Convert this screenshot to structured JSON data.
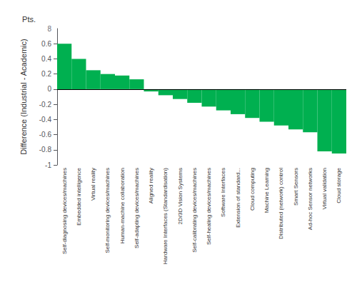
{
  "chart_data": {
    "type": "bar",
    "categories": [
      "Self-diagnosing devices/machines",
      "Embedded intelligence",
      "Virtual reality",
      "Self-monitoring devices/machines",
      "Human-machine collaboration",
      "Self-adapting devices/machines",
      "Aligned reality",
      "Hardware Interfaces (Standardisation)",
      "2D/3D Vision Systems",
      "Self-calibrating devices/machines",
      "Self-healing devices/machines",
      "Software Interfaces",
      "Extension of standard...",
      "Cloud computing",
      "Machine Learning",
      "Distributed (network) control",
      "Smart Sensors",
      "Ad-hoc Sensor networks",
      "Virtual validation",
      "Cloud storage"
    ],
    "values": [
      0.6,
      0.4,
      0.25,
      0.2,
      0.18,
      0.13,
      -0.03,
      -0.08,
      -0.13,
      -0.18,
      -0.23,
      -0.28,
      -0.33,
      -0.38,
      -0.43,
      -0.48,
      -0.53,
      -0.57,
      -0.82,
      -0.85
    ],
    "color": "#00b050",
    "ylabel": "Difference (Industrial - Academic)",
    "ylim": [
      -1,
      0.8
    ],
    "yticks": [
      -1,
      -0.8,
      -0.6,
      -0.4,
      -0.2,
      0,
      0.2,
      0.4,
      0.6
    ],
    "grid": false,
    "annotations": [
      {
        "text": "8",
        "y": 0.8
      },
      {
        "text": "Pts."
      }
    ]
  }
}
